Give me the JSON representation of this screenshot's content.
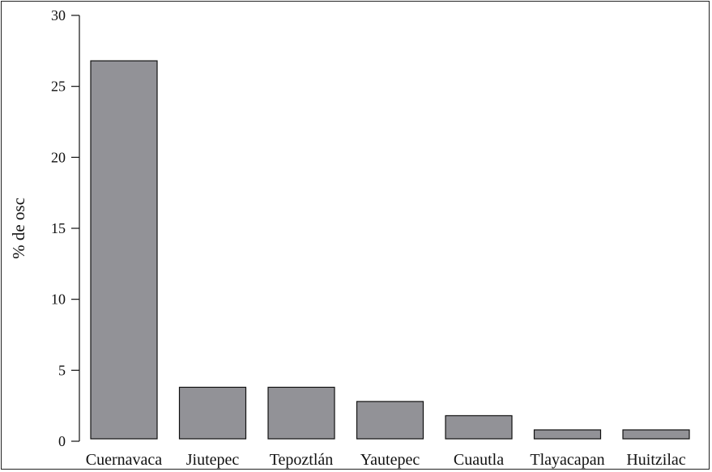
{
  "chart_data": {
    "type": "bar",
    "title": "",
    "xlabel": "",
    "ylabel": "% de osc",
    "categories": [
      "Cuernavaca",
      "Jiutepec",
      "Tepoztlán",
      "Yautepec",
      "Cuautla",
      "Tlayacapan",
      "Huitzilac"
    ],
    "values": [
      26.8,
      3.8,
      3.8,
      2.8,
      1.8,
      0.8,
      0.8
    ],
    "ylim": [
      0,
      30
    ],
    "yticks": [
      0,
      5,
      10,
      15,
      20,
      25,
      30
    ],
    "ytick_labels": [
      "0",
      "5",
      "10",
      "15",
      "20",
      "25",
      "30"
    ],
    "grid": false,
    "legend": "none",
    "colors": {
      "bar_fill": "#929297",
      "bar_stroke": "#111111",
      "axis": "#111111"
    }
  }
}
